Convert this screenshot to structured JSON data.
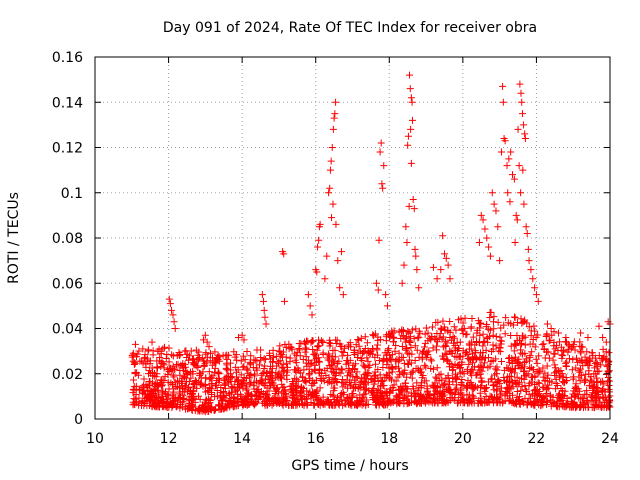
{
  "chart_data": {
    "type": "scatter",
    "title": "Day 091 of 2024, Rate Of TEC Index for receiver obra",
    "xlabel": "GPS time / hours",
    "ylabel": "ROTI / TECUs",
    "xlim": [
      10,
      24
    ],
    "ylim": [
      0,
      0.16
    ],
    "xticks": [
      "10",
      "12",
      "14",
      "16",
      "18",
      "20",
      "22",
      "24"
    ],
    "yticks": [
      "0",
      "0.02",
      "0.04",
      "0.06",
      "0.08",
      "0.1",
      "0.12",
      "0.14",
      "0.16"
    ],
    "grid": true,
    "marker": "+",
    "color": "#ff0000",
    "baseline_envelope": [
      {
        "x": 11.0,
        "low": 0.006,
        "high": 0.03
      },
      {
        "x": 12.0,
        "low": 0.005,
        "high": 0.032
      },
      {
        "x": 13.0,
        "low": 0.003,
        "high": 0.03
      },
      {
        "x": 14.0,
        "low": 0.006,
        "high": 0.03
      },
      {
        "x": 15.0,
        "low": 0.006,
        "high": 0.033
      },
      {
        "x": 16.0,
        "low": 0.006,
        "high": 0.035
      },
      {
        "x": 17.0,
        "low": 0.006,
        "high": 0.035
      },
      {
        "x": 18.0,
        "low": 0.006,
        "high": 0.04
      },
      {
        "x": 19.0,
        "low": 0.007,
        "high": 0.042
      },
      {
        "x": 20.0,
        "low": 0.007,
        "high": 0.045
      },
      {
        "x": 21.0,
        "low": 0.007,
        "high": 0.048
      },
      {
        "x": 22.0,
        "low": 0.006,
        "high": 0.042
      },
      {
        "x": 23.0,
        "low": 0.005,
        "high": 0.035
      },
      {
        "x": 24.0,
        "low": 0.005,
        "high": 0.03
      }
    ],
    "series": [
      {
        "name": "ROTI",
        "points": [
          [
            12.02,
            0.053
          ],
          [
            12.05,
            0.051
          ],
          [
            12.08,
            0.048
          ],
          [
            12.12,
            0.046
          ],
          [
            12.15,
            0.043
          ],
          [
            12.18,
            0.04
          ],
          [
            11.1,
            0.033
          ],
          [
            11.3,
            0.031
          ],
          [
            11.55,
            0.034
          ],
          [
            11.8,
            0.03
          ],
          [
            12.95,
            0.035
          ],
          [
            13.0,
            0.037
          ],
          [
            13.05,
            0.034
          ],
          [
            13.1,
            0.032
          ],
          [
            13.9,
            0.036
          ],
          [
            14.0,
            0.037
          ],
          [
            14.05,
            0.035
          ],
          [
            14.55,
            0.055
          ],
          [
            14.58,
            0.052
          ],
          [
            14.6,
            0.048
          ],
          [
            14.62,
            0.045
          ],
          [
            14.65,
            0.042
          ],
          [
            15.1,
            0.074
          ],
          [
            15.13,
            0.073
          ],
          [
            15.15,
            0.052
          ],
          [
            15.8,
            0.055
          ],
          [
            15.85,
            0.05
          ],
          [
            15.9,
            0.046
          ],
          [
            16.0,
            0.066
          ],
          [
            16.03,
            0.065
          ],
          [
            16.05,
            0.076
          ],
          [
            16.08,
            0.079
          ],
          [
            16.1,
            0.085
          ],
          [
            16.12,
            0.086
          ],
          [
            16.35,
            0.1
          ],
          [
            16.38,
            0.102
          ],
          [
            16.4,
            0.11
          ],
          [
            16.42,
            0.114
          ],
          [
            16.45,
            0.12
          ],
          [
            16.48,
            0.128
          ],
          [
            16.5,
            0.133
          ],
          [
            16.52,
            0.135
          ],
          [
            16.54,
            0.14
          ],
          [
            16.47,
            0.095
          ],
          [
            16.43,
            0.089
          ],
          [
            16.55,
            0.086
          ],
          [
            16.3,
            0.072
          ],
          [
            16.6,
            0.07
          ],
          [
            16.7,
            0.074
          ],
          [
            16.25,
            0.062
          ],
          [
            16.65,
            0.058
          ],
          [
            16.75,
            0.055
          ],
          [
            17.75,
            0.118
          ],
          [
            17.78,
            0.122
          ],
          [
            17.8,
            0.104
          ],
          [
            17.82,
            0.102
          ],
          [
            17.85,
            0.112
          ],
          [
            17.72,
            0.079
          ],
          [
            17.65,
            0.06
          ],
          [
            17.7,
            0.057
          ],
          [
            17.9,
            0.055
          ],
          [
            17.95,
            0.05
          ],
          [
            18.55,
            0.152
          ],
          [
            18.57,
            0.146
          ],
          [
            18.6,
            0.142
          ],
          [
            18.62,
            0.14
          ],
          [
            18.63,
            0.132
          ],
          [
            18.58,
            0.128
          ],
          [
            18.52,
            0.125
          ],
          [
            18.5,
            0.121
          ],
          [
            18.6,
            0.113
          ],
          [
            18.65,
            0.097
          ],
          [
            18.68,
            0.093
          ],
          [
            18.54,
            0.094
          ],
          [
            18.45,
            0.085
          ],
          [
            18.48,
            0.078
          ],
          [
            18.7,
            0.075
          ],
          [
            18.72,
            0.072
          ],
          [
            18.4,
            0.068
          ],
          [
            18.75,
            0.066
          ],
          [
            18.35,
            0.06
          ],
          [
            18.8,
            0.058
          ],
          [
            19.2,
            0.067
          ],
          [
            19.3,
            0.062
          ],
          [
            19.45,
            0.081
          ],
          [
            19.5,
            0.073
          ],
          [
            19.55,
            0.071
          ],
          [
            19.6,
            0.068
          ],
          [
            19.4,
            0.066
          ],
          [
            19.65,
            0.062
          ],
          [
            20.5,
            0.09
          ],
          [
            20.55,
            0.088
          ],
          [
            20.6,
            0.084
          ],
          [
            20.65,
            0.08
          ],
          [
            20.45,
            0.078
          ],
          [
            20.7,
            0.076
          ],
          [
            20.8,
            0.1
          ],
          [
            20.85,
            0.095
          ],
          [
            20.9,
            0.092
          ],
          [
            20.95,
            0.085
          ],
          [
            20.75,
            0.072
          ],
          [
            21.0,
            0.07
          ],
          [
            21.08,
            0.147
          ],
          [
            21.1,
            0.14
          ],
          [
            21.12,
            0.124
          ],
          [
            21.15,
            0.123
          ],
          [
            21.05,
            0.118
          ],
          [
            21.2,
            0.112
          ],
          [
            21.25,
            0.115
          ],
          [
            21.3,
            0.118
          ],
          [
            21.35,
            0.108
          ],
          [
            21.4,
            0.106
          ],
          [
            21.22,
            0.1
          ],
          [
            21.28,
            0.096
          ],
          [
            21.55,
            0.148
          ],
          [
            21.58,
            0.144
          ],
          [
            21.6,
            0.14
          ],
          [
            21.62,
            0.135
          ],
          [
            21.65,
            0.13
          ],
          [
            21.68,
            0.126
          ],
          [
            21.5,
            0.128
          ],
          [
            21.7,
            0.124
          ],
          [
            21.53,
            0.112
          ],
          [
            21.63,
            0.11
          ],
          [
            21.57,
            0.1
          ],
          [
            21.66,
            0.095
          ],
          [
            21.45,
            0.09
          ],
          [
            21.48,
            0.088
          ],
          [
            21.72,
            0.085
          ],
          [
            21.75,
            0.082
          ],
          [
            21.42,
            0.078
          ],
          [
            21.78,
            0.075
          ],
          [
            21.8,
            0.07
          ],
          [
            21.85,
            0.066
          ],
          [
            21.9,
            0.062
          ],
          [
            21.95,
            0.058
          ],
          [
            22.0,
            0.055
          ],
          [
            22.05,
            0.052
          ],
          [
            22.3,
            0.042
          ],
          [
            22.4,
            0.04
          ],
          [
            22.6,
            0.038
          ],
          [
            22.8,
            0.036
          ],
          [
            23.2,
            0.038
          ],
          [
            23.4,
            0.036
          ],
          [
            23.7,
            0.041
          ],
          [
            23.8,
            0.036
          ],
          [
            23.95,
            0.043
          ],
          [
            24.0,
            0.042
          ],
          [
            23.9,
            0.034
          ]
        ]
      }
    ]
  }
}
